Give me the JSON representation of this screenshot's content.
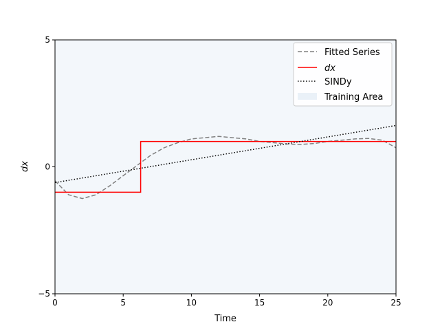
{
  "chart_data": {
    "type": "line",
    "title": "",
    "xlabel": "Time",
    "ylabel": "dx",
    "xlim": [
      0,
      25
    ],
    "ylim": [
      -5,
      5
    ],
    "xticks": [
      0,
      5,
      10,
      15,
      20,
      25
    ],
    "xtick_labels": [
      "0",
      "5",
      "10",
      "15",
      "20",
      "25"
    ],
    "yticks": [
      -5,
      0,
      5
    ],
    "ytick_labels": [
      "−5",
      "0",
      "5"
    ],
    "grid": false,
    "legend_position": "top-right",
    "training_area": {
      "name": "Training Area",
      "x_range": [
        0,
        25
      ],
      "color": "#dce8f4"
    },
    "series": [
      {
        "name": "Fitted Series",
        "style": "dashed",
        "color": "#808080",
        "x": [
          0,
          1,
          2,
          3,
          4,
          5,
          6,
          7,
          8,
          9,
          10,
          11,
          12,
          13,
          14,
          15,
          16,
          17,
          18,
          19,
          20,
          21,
          22,
          23,
          24,
          25
        ],
        "y": [
          -0.55,
          -1.1,
          -1.25,
          -1.1,
          -0.75,
          -0.35,
          0.05,
          0.45,
          0.75,
          0.95,
          1.1,
          1.15,
          1.2,
          1.15,
          1.1,
          1.0,
          0.95,
          0.9,
          0.88,
          0.92,
          1.0,
          1.05,
          1.1,
          1.12,
          1.05,
          0.75
        ]
      },
      {
        "name": "dx",
        "style": "solid",
        "color": "#ff0000",
        "x": [
          0,
          6.28,
          6.28,
          25
        ],
        "y": [
          -1,
          -1,
          1,
          1
        ]
      },
      {
        "name": "SINDy",
        "style": "dotted",
        "color": "#000000",
        "x": [
          0,
          25
        ],
        "y": [
          -0.62,
          1.63
        ]
      }
    ]
  }
}
